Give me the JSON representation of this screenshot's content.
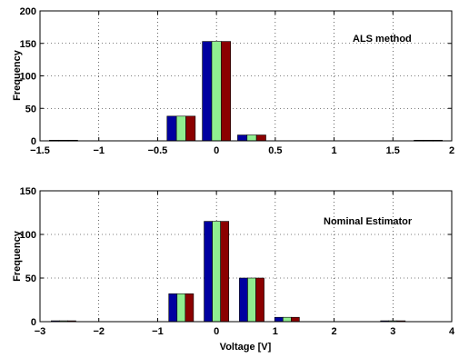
{
  "chart_data": [
    {
      "type": "bar",
      "title": "",
      "xlabel": "",
      "ylabel": "Frequency",
      "annotation": "ALS method",
      "xlim": [
        -1.5,
        2
      ],
      "ylim": [
        0,
        200
      ],
      "xticks": [
        "−1.5",
        "−1",
        "−0.5",
        "0",
        "0.5",
        "1",
        "1.5",
        "2"
      ],
      "yticks": [
        "0",
        "50",
        "100",
        "150",
        "200"
      ],
      "grid": true,
      "bar_colors": [
        "#0000a0",
        "#90ee90",
        "#8b0000"
      ],
      "x": [
        -1.3,
        -0.9,
        -0.6,
        -0.3,
        0.0,
        0.3,
        0.6,
        0.9,
        1.2,
        1.5,
        1.8
      ],
      "values": [
        1,
        0,
        0,
        38,
        153,
        9,
        0,
        0,
        0,
        0,
        1
      ]
    },
    {
      "type": "bar",
      "title": "",
      "xlabel": "Voltage [V]",
      "ylabel": "Frequency",
      "annotation": "Nominal Estimator",
      "xlim": [
        -3,
        4
      ],
      "ylim": [
        0,
        150
      ],
      "xticks": [
        "−3",
        "−2",
        "−1",
        "0",
        "1",
        "2",
        "3",
        "4"
      ],
      "yticks": [
        "0",
        "50",
        "100",
        "150"
      ],
      "grid": true,
      "bar_colors": [
        "#0000a0",
        "#90ee90",
        "#8b0000"
      ],
      "x": [
        -2.6,
        -2.0,
        -1.4,
        -0.6,
        0.0,
        0.6,
        1.2,
        1.8,
        2.4,
        3.0
      ],
      "values": [
        1,
        0,
        0,
        32,
        115,
        50,
        5,
        0,
        0,
        1
      ]
    }
  ]
}
